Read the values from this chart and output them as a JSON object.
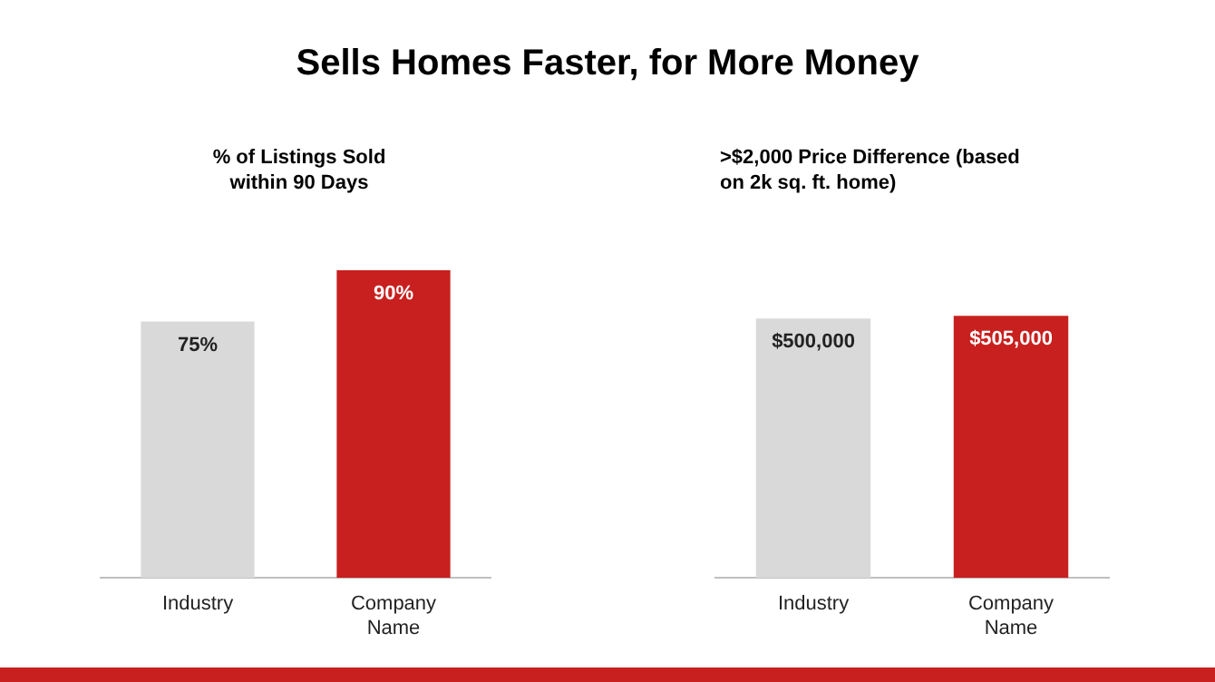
{
  "chart_data": [
    {
      "type": "bar",
      "title": "Sells Homes Faster, for More Money",
      "subtitle": "% of Listings Sold\nwithin 90 Days",
      "categories": [
        "Industry",
        "Company Name"
      ],
      "values": [
        75,
        90
      ],
      "colors": [
        "#d9d9d9",
        "#c8201e"
      ],
      "value_labels": [
        "75%",
        "90%"
      ],
      "legend": false,
      "grid": false,
      "tick_labels": "x"
    },
    {
      "type": "bar",
      "subtitle": ">$2,000 Price Difference  (based\non 2k sq. ft. home)",
      "categories": [
        "Industry",
        "Company Name"
      ],
      "values": [
        500000,
        505000
      ],
      "colors": [
        "#d9d9d9",
        "#c8201e"
      ],
      "value_labels": [
        "$500,000",
        "$505,000"
      ],
      "legend": false,
      "grid": false,
      "tick_labels": "x"
    }
  ]
}
